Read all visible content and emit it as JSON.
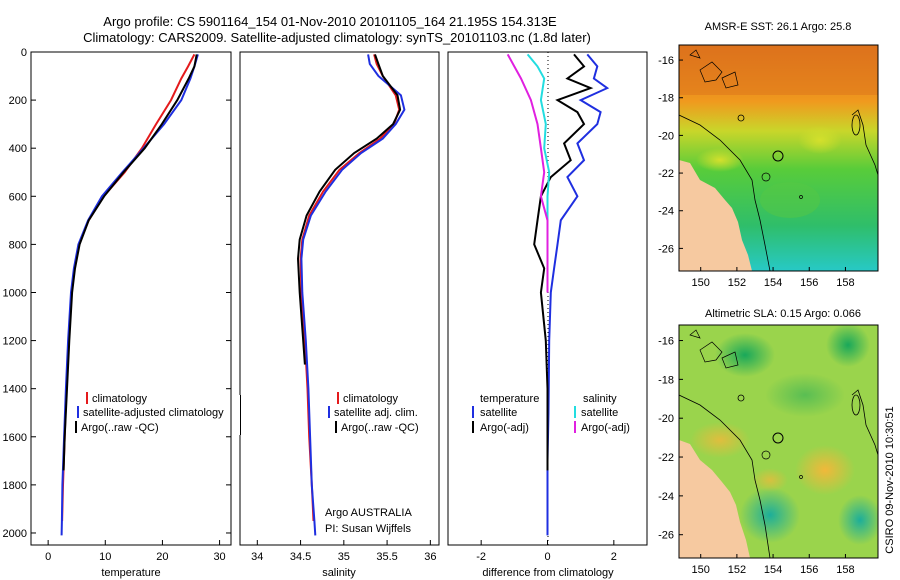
{
  "title_line1": "Argo profile: CS 5901164_154 01-Nov-2010 20101105_164 21.195S 154.313E",
  "title_line2": "Climatology: CARS2009. Satellite-adjusted climatology: synTS_20101103.nc (1.8d later)",
  "side_stamp": "CSIRO 09-Nov-2010 10:30:51",
  "colors": {
    "red": "#e41a1c",
    "blue": "#1f2fe0",
    "black": "#000000",
    "cyan": "#22dde0",
    "magenta": "#e020e0",
    "land": "#f6c9a0"
  },
  "chart_data": [
    {
      "type": "line",
      "id": "temperature",
      "xlabel": "temperature",
      "ylabel": "",
      "xlim": [
        -3,
        32
      ],
      "ylim": [
        2050,
        0
      ],
      "xticks": [
        "0",
        "10",
        "20",
        "30"
      ],
      "yticks": [
        "0",
        "200",
        "400",
        "600",
        "800",
        "1000",
        "1200",
        "1400",
        "1600",
        "1800",
        "2000"
      ],
      "legend": [
        "climatology",
        "satellite-adjusted climatology",
        "Argo(..raw -QC)"
      ],
      "series": [
        {
          "name": "climatology",
          "color": "red",
          "points": [
            [
              25.6,
              10
            ],
            [
              24.5,
              60
            ],
            [
              23.3,
              110
            ],
            [
              21.5,
              200
            ],
            [
              18.9,
              300
            ],
            [
              16.4,
              400
            ],
            [
              13.4,
              500
            ],
            [
              9.7,
              600
            ],
            [
              7.1,
              700
            ],
            [
              5.4,
              800
            ],
            [
              4.6,
              900
            ],
            [
              4.1,
              1000
            ],
            [
              3.6,
              1200
            ],
            [
              3.2,
              1400
            ],
            [
              2.9,
              1600
            ],
            [
              2.6,
              1800
            ],
            [
              2.45,
              1950
            ]
          ]
        },
        {
          "name": "satellite-adjusted climatology",
          "color": "blue",
          "points": [
            [
              26.2,
              10
            ],
            [
              25.6,
              60
            ],
            [
              24.9,
              110
            ],
            [
              23.3,
              200
            ],
            [
              20.3,
              300
            ],
            [
              16.7,
              400
            ],
            [
              13.0,
              500
            ],
            [
              9.4,
              600
            ],
            [
              7.0,
              700
            ],
            [
              5.3,
              800
            ],
            [
              4.5,
              900
            ],
            [
              4.0,
              1000
            ],
            [
              3.5,
              1200
            ],
            [
              3.1,
              1400
            ],
            [
              2.8,
              1600
            ],
            [
              2.5,
              1800
            ],
            [
              2.4,
              1950
            ],
            [
              2.35,
              2010
            ]
          ]
        },
        {
          "name": "Argo(..raw -QC)",
          "color": "black",
          "points": [
            [
              26.0,
              10
            ],
            [
              25.6,
              60
            ],
            [
              24.6,
              110
            ],
            [
              22.6,
              200
            ],
            [
              19.9,
              300
            ],
            [
              16.9,
              400
            ],
            [
              13.2,
              500
            ],
            [
              9.8,
              600
            ],
            [
              7.1,
              700
            ],
            [
              5.5,
              800
            ],
            [
              4.7,
              900
            ],
            [
              4.2,
              1000
            ],
            [
              3.7,
              1200
            ],
            [
              3.3,
              1400
            ],
            [
              2.9,
              1600
            ],
            [
              2.7,
              1740
            ]
          ]
        }
      ]
    },
    {
      "type": "line",
      "id": "salinity",
      "xlabel": "salinity",
      "ylabel": "",
      "xlim": [
        33.8,
        36.1
      ],
      "ylim": [
        2050,
        0
      ],
      "xticks": [
        "34",
        "34.5",
        "35",
        "35.5",
        "36"
      ],
      "legend": [
        "climatology",
        "satellite adj. clim.",
        "Argo(..raw -QC)"
      ],
      "annotation": [
        "Argo AUSTRALIA",
        "PI: Susan Wijffels"
      ],
      "series": [
        {
          "name": "climatology",
          "color": "red",
          "points": [
            [
              35.35,
              10
            ],
            [
              35.38,
              50
            ],
            [
              35.45,
              100
            ],
            [
              35.6,
              180
            ],
            [
              35.64,
              240
            ],
            [
              35.58,
              300
            ],
            [
              35.42,
              360
            ],
            [
              35.18,
              420
            ],
            [
              34.95,
              490
            ],
            [
              34.76,
              580
            ],
            [
              34.6,
              680
            ],
            [
              34.52,
              780
            ],
            [
              34.5,
              860
            ],
            [
              34.51,
              1000
            ],
            [
              34.55,
              1200
            ],
            [
              34.58,
              1400
            ],
            [
              34.6,
              1600
            ],
            [
              34.63,
              1800
            ],
            [
              34.65,
              1950
            ]
          ]
        },
        {
          "name": "satellite adj. clim.",
          "color": "blue",
          "points": [
            [
              35.28,
              10
            ],
            [
              35.3,
              50
            ],
            [
              35.4,
              100
            ],
            [
              35.66,
              180
            ],
            [
              35.7,
              240
            ],
            [
              35.6,
              300
            ],
            [
              35.45,
              360
            ],
            [
              35.2,
              420
            ],
            [
              34.98,
              490
            ],
            [
              34.79,
              580
            ],
            [
              34.62,
              680
            ],
            [
              34.53,
              780
            ],
            [
              34.51,
              860
            ],
            [
              34.52,
              1000
            ],
            [
              34.56,
              1200
            ],
            [
              34.59,
              1400
            ],
            [
              34.61,
              1600
            ],
            [
              34.63,
              1800
            ],
            [
              34.66,
              1950
            ],
            [
              34.67,
              2010
            ]
          ]
        },
        {
          "name": "Argo(..raw -QC)",
          "color": "black",
          "points": [
            [
              35.36,
              10
            ],
            [
              35.4,
              50
            ],
            [
              35.45,
              100
            ],
            [
              35.62,
              180
            ],
            [
              35.65,
              240
            ],
            [
              35.57,
              300
            ],
            [
              35.38,
              360
            ],
            [
              35.12,
              420
            ],
            [
              34.9,
              490
            ],
            [
              34.72,
              580
            ],
            [
              34.57,
              680
            ],
            [
              34.49,
              780
            ],
            [
              34.47,
              860
            ],
            [
              34.49,
              1000
            ],
            [
              34.53,
              1200
            ],
            [
              34.55,
              1300
            ]
          ]
        }
      ]
    },
    {
      "type": "line",
      "id": "difference",
      "xlabel": "difference from climatology",
      "ylabel": "",
      "xlim": [
        -3,
        3
      ],
      "ylim": [
        2050,
        0
      ],
      "xticks": [
        "-2",
        "0",
        "2"
      ],
      "legend_left_title": "temperature",
      "legend_right_title": "salinity",
      "legend": [
        "satellite",
        "Argo(-adj)",
        "satellite",
        "Argo(-adj)"
      ],
      "series": [
        {
          "name": "temperature satellite",
          "color": "blue",
          "points": [
            [
              1.2,
              10
            ],
            [
              1.5,
              60
            ],
            [
              1.4,
              110
            ],
            [
              1.8,
              150
            ],
            [
              1.0,
              200
            ],
            [
              1.6,
              250
            ],
            [
              1.5,
              300
            ],
            [
              0.9,
              380
            ],
            [
              1.1,
              450
            ],
            [
              0.6,
              520
            ],
            [
              0.9,
              600
            ],
            [
              0.4,
              700
            ],
            [
              0.3,
              800
            ],
            [
              0.2,
              900
            ],
            [
              0.1,
              1000
            ],
            [
              0.05,
              1200
            ],
            [
              0.03,
              1500
            ],
            [
              0.0,
              1700
            ],
            [
              0.0,
              1900
            ],
            [
              0.0,
              2010
            ]
          ]
        },
        {
          "name": "temperature Argo(-adj)",
          "color": "black",
          "points": [
            [
              0.8,
              10
            ],
            [
              1.1,
              60
            ],
            [
              0.6,
              110
            ],
            [
              1.3,
              150
            ],
            [
              0.3,
              200
            ],
            [
              0.9,
              250
            ],
            [
              1.1,
              300
            ],
            [
              0.5,
              380
            ],
            [
              0.7,
              450
            ],
            [
              0.1,
              520
            ],
            [
              -0.2,
              600
            ],
            [
              -0.3,
              700
            ],
            [
              -0.4,
              800
            ],
            [
              -0.1,
              900
            ],
            [
              -0.2,
              1000
            ],
            [
              -0.05,
              1200
            ],
            [
              0.0,
              1400
            ],
            [
              0.0,
              1740
            ]
          ]
        },
        {
          "name": "salinity satellite",
          "color": "cyan",
          "points": [
            [
              -0.6,
              10
            ],
            [
              -0.3,
              60
            ],
            [
              -0.1,
              110
            ],
            [
              -0.2,
              200
            ],
            [
              -0.05,
              300
            ],
            [
              -0.1,
              400
            ],
            [
              0.05,
              500
            ],
            [
              0.0,
              600
            ],
            [
              0.0,
              800
            ],
            [
              0.0,
              1000
            ]
          ]
        },
        {
          "name": "salinity Argo(-adj)",
          "color": "magenta",
          "points": [
            [
              -1.2,
              10
            ],
            [
              -1.0,
              60
            ],
            [
              -0.8,
              110
            ],
            [
              -0.5,
              200
            ],
            [
              -0.3,
              300
            ],
            [
              -0.2,
              400
            ],
            [
              -0.1,
              500
            ],
            [
              -0.2,
              600
            ],
            [
              0.0,
              700
            ],
            [
              0.0,
              1000
            ]
          ]
        }
      ]
    },
    {
      "type": "heatmap",
      "id": "sst_map",
      "title": "AMSR-E SST: 26.1 Argo: 25.8",
      "xticks": [
        "150",
        "152",
        "154",
        "156",
        "158"
      ],
      "yticks": [
        "-16",
        "-18",
        "-20",
        "-22",
        "-24",
        "-26"
      ],
      "xlim": [
        148.8,
        159.8
      ],
      "ylim": [
        -27.2,
        -15.2
      ],
      "argo_position": [
        154.313,
        -21.195
      ]
    },
    {
      "type": "heatmap",
      "id": "sla_map",
      "title": "Altimetric SLA: 0.15 Argo: 0.066",
      "xticks": [
        "150",
        "152",
        "154",
        "156",
        "158"
      ],
      "yticks": [
        "-16",
        "-18",
        "-20",
        "-22",
        "-24",
        "-26"
      ],
      "xlim": [
        148.8,
        159.8
      ],
      "ylim": [
        -27.2,
        -15.2
      ],
      "argo_position": [
        154.313,
        -21.195
      ]
    }
  ]
}
